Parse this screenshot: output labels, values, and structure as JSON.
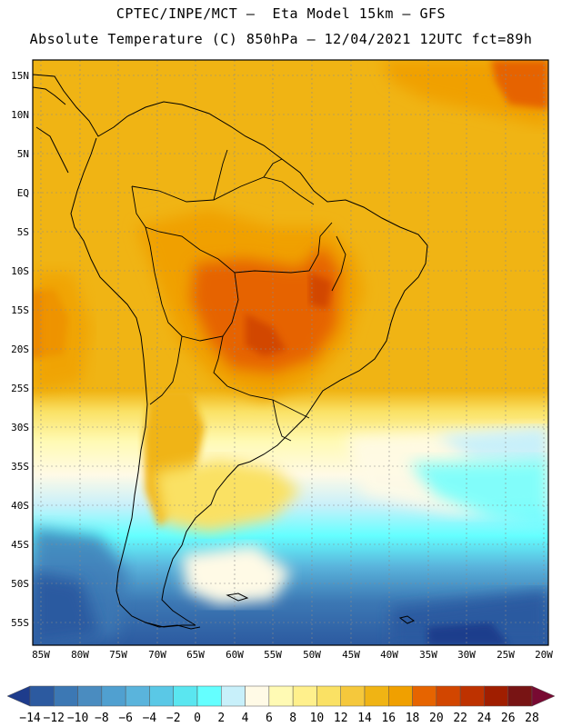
{
  "title_line1": "CPTEC/INPE/MCT –  Eta Model 15km – GFS",
  "title_line2": "Absolute Temperature (C) 850hPa – 12/04/2021 12UTC fct=89h",
  "lat_labels": [
    "15N",
    "10N",
    "5N",
    "EQ",
    "5S",
    "10S",
    "15S",
    "20S",
    "25S",
    "30S",
    "35S",
    "40S",
    "45S",
    "50S",
    "55S"
  ],
  "lon_labels": [
    "85W",
    "80W",
    "75W",
    "70W",
    "65W",
    "60W",
    "55W",
    "50W",
    "45W",
    "40W",
    "35W",
    "30W",
    "25W",
    "20W"
  ],
  "colorbar": {
    "colors": [
      "#1e3c8c",
      "#2c5aa0",
      "#3c78b4",
      "#4a8cc0",
      "#50a0d0",
      "#5ab4dc",
      "#5ac8e6",
      "#5ae6f0",
      "#64ffff",
      "#c8f0fa",
      "#fffae6",
      "#fffab4",
      "#fff08c",
      "#fae164",
      "#f5c83c",
      "#f0b414",
      "#f0a000",
      "#e66400",
      "#d24600",
      "#be3200",
      "#a01e00",
      "#781414",
      "#780a32"
    ],
    "labels": [
      "-14",
      "-12",
      "-10",
      "-8",
      "-6",
      "-4",
      "-2",
      "0",
      "2",
      "4",
      "6",
      "8",
      "10",
      "12",
      "14",
      "16",
      "18",
      "20",
      "22",
      "24",
      "26",
      "28"
    ]
  }
}
